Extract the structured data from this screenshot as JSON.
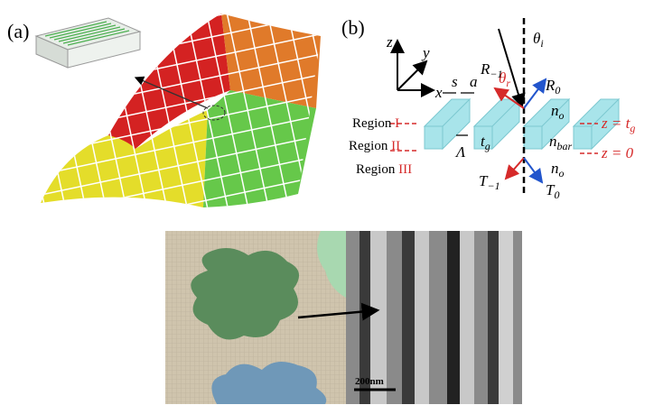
{
  "panel_a": {
    "label": "(a)"
  },
  "panel_b": {
    "label": "(b)",
    "axis_z": "z",
    "axis_y": "y",
    "axis_x": "x",
    "s": "s",
    "a": "a",
    "theta_i": {
      "base": "θ",
      "sub": "i"
    },
    "theta_r": {
      "base": "θ",
      "sub": "r"
    },
    "r_minus1": {
      "base": "R",
      "sub": "−1"
    },
    "r_0": {
      "base": "R",
      "sub": "0"
    },
    "n_o_top": {
      "base": "n",
      "sub": "o"
    },
    "region_1": {
      "text": "Region",
      "numeral": "I"
    },
    "region_2": {
      "text": "Region",
      "numeral": "II"
    },
    "region_3": {
      "text": "Region",
      "numeral": "III"
    },
    "period": "Λ",
    "t_g": {
      "base": "t",
      "sub": "g"
    },
    "n_bar": {
      "base": "n",
      "sub": "bar"
    },
    "z_tg": {
      "base": "z = t",
      "sub": "g"
    },
    "z_0": "z = 0",
    "t_minus1": {
      "base": "T",
      "sub": "−1"
    },
    "n_o_bottom": {
      "base": "n",
      "sub": "o"
    },
    "t_0": {
      "base": "T",
      "sub": "0"
    }
  },
  "panel_c": {
    "scale_bar": "200nm"
  }
}
